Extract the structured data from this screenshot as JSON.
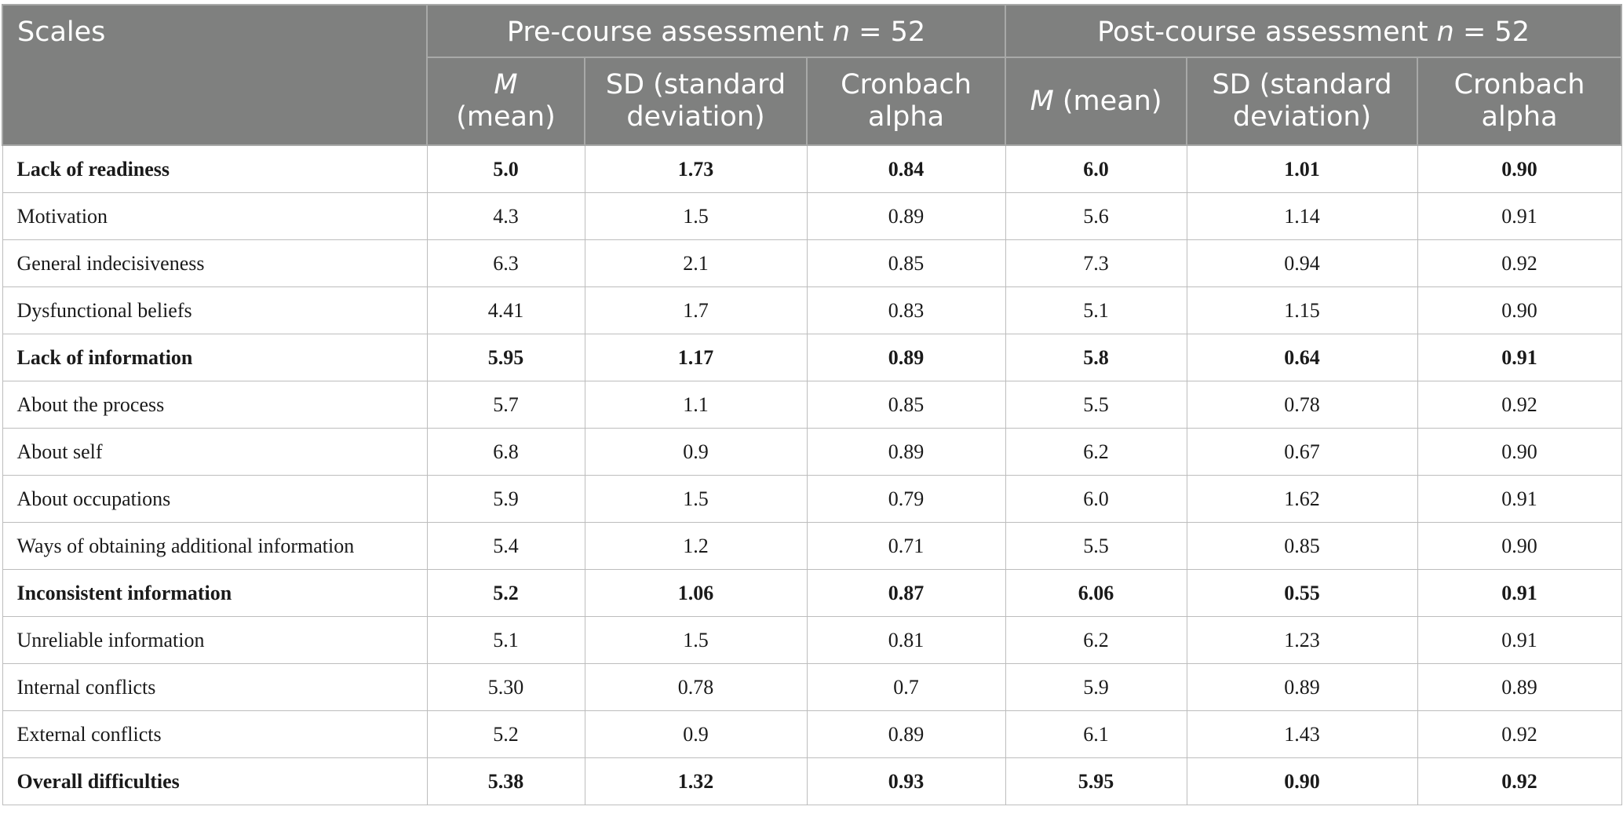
{
  "header": {
    "scales": "Scales",
    "pre_group": {
      "label": "Pre-course assessment ",
      "n_symbol": "n",
      "n_value": " = 52"
    },
    "post_group": {
      "label": "Post-course assessment ",
      "n_symbol": "n",
      "n_value": " = 52"
    },
    "columns": {
      "pre_mean_symbol": "M",
      "pre_mean_text": "(mean)",
      "pre_sd": "SD (standard deviation)",
      "pre_alpha": "Cronbach alpha",
      "post_mean_symbol": "M",
      "post_mean_text": " (mean)",
      "post_sd": "SD (standard deviation)",
      "post_alpha": "Cronbach alpha"
    }
  },
  "rows": [
    {
      "label": "Lack of readiness",
      "bold": true,
      "values": [
        "5.0",
        "1.73",
        "0.84",
        "6.0",
        "1.01",
        "0.90"
      ]
    },
    {
      "label": "Motivation",
      "bold": false,
      "values": [
        "4.3",
        "1.5",
        "0.89",
        "5.6",
        "1.14",
        "0.91"
      ]
    },
    {
      "label": "General indecisiveness",
      "bold": false,
      "values": [
        "6.3",
        "2.1",
        "0.85",
        "7.3",
        "0.94",
        "0.92"
      ]
    },
    {
      "label": "Dysfunctional beliefs",
      "bold": false,
      "values": [
        "4.41",
        "1.7",
        "0.83",
        "5.1",
        "1.15",
        "0.90"
      ]
    },
    {
      "label": "Lack of information",
      "bold": true,
      "values": [
        "5.95",
        "1.17",
        "0.89",
        "5.8",
        "0.64",
        "0.91"
      ]
    },
    {
      "label": "About the process",
      "bold": false,
      "values": [
        "5.7",
        "1.1",
        "0.85",
        "5.5",
        "0.78",
        "0.92"
      ]
    },
    {
      "label": "About self",
      "bold": false,
      "values": [
        "6.8",
        "0.9",
        "0.89",
        "6.2",
        "0.67",
        "0.90"
      ]
    },
    {
      "label": "About occupations",
      "bold": false,
      "values": [
        "5.9",
        "1.5",
        "0.79",
        "6.0",
        "1.62",
        "0.91"
      ]
    },
    {
      "label": "Ways of obtaining additional information",
      "bold": false,
      "values": [
        "5.4",
        "1.2",
        "0.71",
        "5.5",
        "0.85",
        "0.90"
      ]
    },
    {
      "label": "Inconsistent information",
      "bold": true,
      "values": [
        "5.2",
        "1.06",
        "0.87",
        "6.06",
        "0.55",
        "0.91"
      ]
    },
    {
      "label": "Unreliable information",
      "bold": false,
      "values": [
        "5.1",
        "1.5",
        "0.81",
        "6.2",
        "1.23",
        "0.91"
      ]
    },
    {
      "label": "Internal conflicts",
      "bold": false,
      "values": [
        "5.30",
        "0.78",
        "0.7",
        "5.9",
        "0.89",
        "0.89"
      ]
    },
    {
      "label": "External conflicts",
      "bold": false,
      "values": [
        "5.2",
        "0.9",
        "0.89",
        "6.1",
        "1.43",
        "0.92"
      ]
    },
    {
      "label": "Overall difficulties",
      "bold": true,
      "values": [
        "5.38",
        "1.32",
        "0.93",
        "5.95",
        "0.90",
        "0.92"
      ]
    }
  ]
}
